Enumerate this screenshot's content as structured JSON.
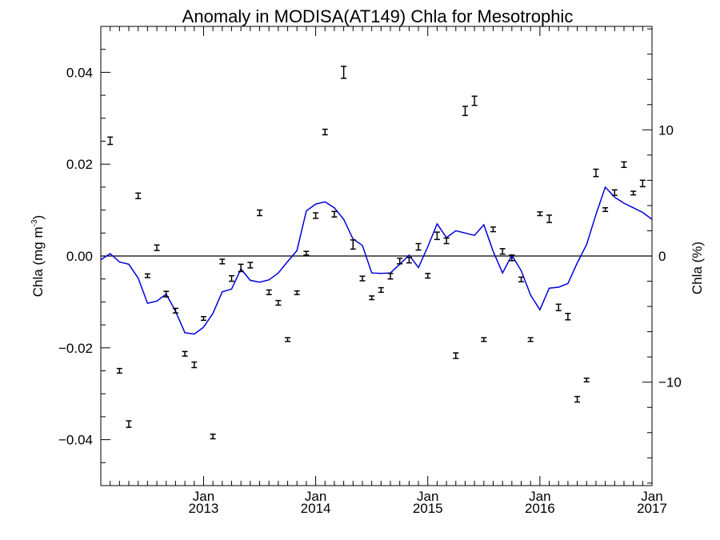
{
  "chart_data": {
    "type": "line",
    "title": "Anomaly in MODISA(AT149) Chla for Mesotrophic",
    "ylabel_left": {
      "text": "Chla (mg m",
      "sup": "-3",
      "close": ")"
    },
    "ylabel_right": "Chla (%)",
    "ylim_left": [
      -0.05,
      0.05
    ],
    "ylim_right": [
      -18.2,
      18.2
    ],
    "xlim": [
      "2012-02-01",
      "2017-01-01"
    ],
    "left_ticks": [
      {
        "v": 0.04,
        "label": "0.04"
      },
      {
        "v": 0.02,
        "label": "0.02"
      },
      {
        "v": 0.0,
        "label": "0.00"
      },
      {
        "v": -0.02,
        "label": "−0.02"
      },
      {
        "v": -0.04,
        "label": "−0.04"
      }
    ],
    "right_ticks": [
      {
        "v": 10,
        "label": "10"
      },
      {
        "v": 0,
        "label": "0"
      },
      {
        "v": -10,
        "label": "−10"
      }
    ],
    "x_ticks": [
      {
        "date": "2013-01",
        "label1": "Jan",
        "label2": "2013"
      },
      {
        "date": "2014-01",
        "label1": "Jan",
        "label2": "2014"
      },
      {
        "date": "2015-01",
        "label1": "Jan",
        "label2": "2015"
      },
      {
        "date": "2016-01",
        "label1": "Jan",
        "label2": "2016"
      },
      {
        "date": "2017-01",
        "label1": "Jan",
        "label2": "2017"
      }
    ],
    "zero_line": 0,
    "line_color": "#0000dd",
    "marker_color": "#000000",
    "smoothed_line": {
      "name": "",
      "x": [
        "2012-02",
        "2012-03",
        "2012-04",
        "2012-05",
        "2012-06",
        "2012-07",
        "2012-08",
        "2012-09",
        "2012-10",
        "2012-11",
        "2012-12",
        "2013-01",
        "2013-02",
        "2013-03",
        "2013-04",
        "2013-05",
        "2013-06",
        "2013-07",
        "2013-08",
        "2013-09",
        "2013-10",
        "2013-11",
        "2013-12",
        "2014-01",
        "2014-02",
        "2014-03",
        "2014-04",
        "2014-05",
        "2014-06",
        "2014-07",
        "2014-08",
        "2014-09",
        "2014-10",
        "2014-11",
        "2014-12",
        "2015-01",
        "2015-02",
        "2015-03",
        "2015-04",
        "2015-05",
        "2015-06",
        "2015-07",
        "2015-08",
        "2015-09",
        "2015-10",
        "2015-11",
        "2015-12",
        "2016-01",
        "2016-02",
        "2016-03",
        "2016-04",
        "2016-05",
        "2016-06",
        "2016-07",
        "2016-08",
        "2016-09",
        "2016-10",
        "2016-11",
        "2016-12",
        "2017-01"
      ],
      "y": [
        -0.0008,
        0.0005,
        -0.0013,
        -0.0018,
        -0.0048,
        -0.0103,
        -0.0098,
        -0.0083,
        -0.012,
        -0.0167,
        -0.017,
        -0.0155,
        -0.0125,
        -0.0078,
        -0.0072,
        -0.0028,
        -0.0053,
        -0.0057,
        -0.0052,
        -0.0037,
        -0.0012,
        0.0012,
        0.0098,
        0.0113,
        0.0118,
        0.0105,
        0.008,
        0.0037,
        0.0023,
        -0.0037,
        -0.0038,
        -0.0037,
        -0.0018,
        0.0002,
        -0.0025,
        0.002,
        0.007,
        0.004,
        0.0055,
        0.005,
        0.0045,
        0.0068,
        0.001,
        -0.0037,
        0.0002,
        -0.0032,
        -0.0085,
        -0.0117,
        -0.007,
        -0.0068,
        -0.006,
        -0.0015,
        0.0025,
        0.009,
        0.015,
        0.0128,
        0.0115,
        0.0105,
        0.0095,
        0.008
      ]
    },
    "monthly_points": {
      "name": "",
      "x": [
        "2012-03",
        "2012-04",
        "2012-05",
        "2012-06",
        "2012-07",
        "2012-08",
        "2012-09",
        "2012-10",
        "2012-11",
        "2012-12",
        "2013-01",
        "2013-02",
        "2013-03",
        "2013-04",
        "2013-05",
        "2013-06",
        "2013-07",
        "2013-08",
        "2013-09",
        "2013-10",
        "2013-11",
        "2013-12",
        "2014-01",
        "2014-02",
        "2014-03",
        "2014-04",
        "2014-05",
        "2014-06",
        "2014-07",
        "2014-08",
        "2014-09",
        "2014-10",
        "2014-11",
        "2014-12",
        "2015-01",
        "2015-02",
        "2015-03",
        "2015-04",
        "2015-05",
        "2015-06",
        "2015-07",
        "2015-08",
        "2015-09",
        "2015-10",
        "2015-11",
        "2015-12",
        "2016-01",
        "2016-02",
        "2016-03",
        "2016-04",
        "2016-05",
        "2016-06",
        "2016-07",
        "2016-08",
        "2016-09",
        "2016-10",
        "2016-11",
        "2016-12"
      ],
      "y": [
        0.0251,
        -0.025,
        -0.0366,
        0.0131,
        -0.0043,
        0.0018,
        -0.0083,
        -0.0119,
        -0.0213,
        -0.0237,
        -0.0136,
        -0.0393,
        -0.0012,
        -0.0049,
        -0.0026,
        -0.002,
        0.0094,
        -0.0079,
        -0.0102,
        -0.0182,
        -0.008,
        0.0006,
        0.0088,
        0.027,
        0.0091,
        0.04,
        0.0025,
        -0.0049,
        -0.0091,
        -0.0074,
        -0.0044,
        -0.0011,
        -0.0009,
        0.002,
        -0.0043,
        0.0044,
        0.0033,
        -0.0217,
        0.0316,
        0.0338,
        -0.0182,
        0.0058,
        0.001,
        -0.0004,
        -0.0051,
        -0.0182,
        0.0092,
        0.0081,
        -0.0112,
        -0.0132,
        -0.0312,
        -0.027,
        0.0181,
        0.0101,
        0.0138,
        0.0199,
        0.0137,
        0.0158
      ],
      "err": [
        0.0008,
        0.0005,
        0.0007,
        0.0006,
        0.0004,
        0.0006,
        0.0006,
        0.0005,
        0.0005,
        0.0006,
        0.0004,
        0.0005,
        0.0005,
        0.0006,
        0.0008,
        0.0006,
        0.0006,
        0.0005,
        0.0005,
        0.0004,
        0.0004,
        0.0004,
        0.0006,
        0.0006,
        0.0006,
        0.0013,
        0.001,
        0.0005,
        0.0004,
        0.0005,
        0.0006,
        0.0006,
        0.0006,
        0.0007,
        0.0005,
        0.0008,
        0.0006,
        0.0006,
        0.001,
        0.001,
        0.0004,
        0.0005,
        0.0006,
        0.0006,
        0.0005,
        0.0004,
        0.0004,
        0.0008,
        0.0007,
        0.0007,
        0.0006,
        0.0004,
        0.0008,
        0.0004,
        0.0006,
        0.0006,
        0.0004,
        0.0007
      ]
    }
  }
}
